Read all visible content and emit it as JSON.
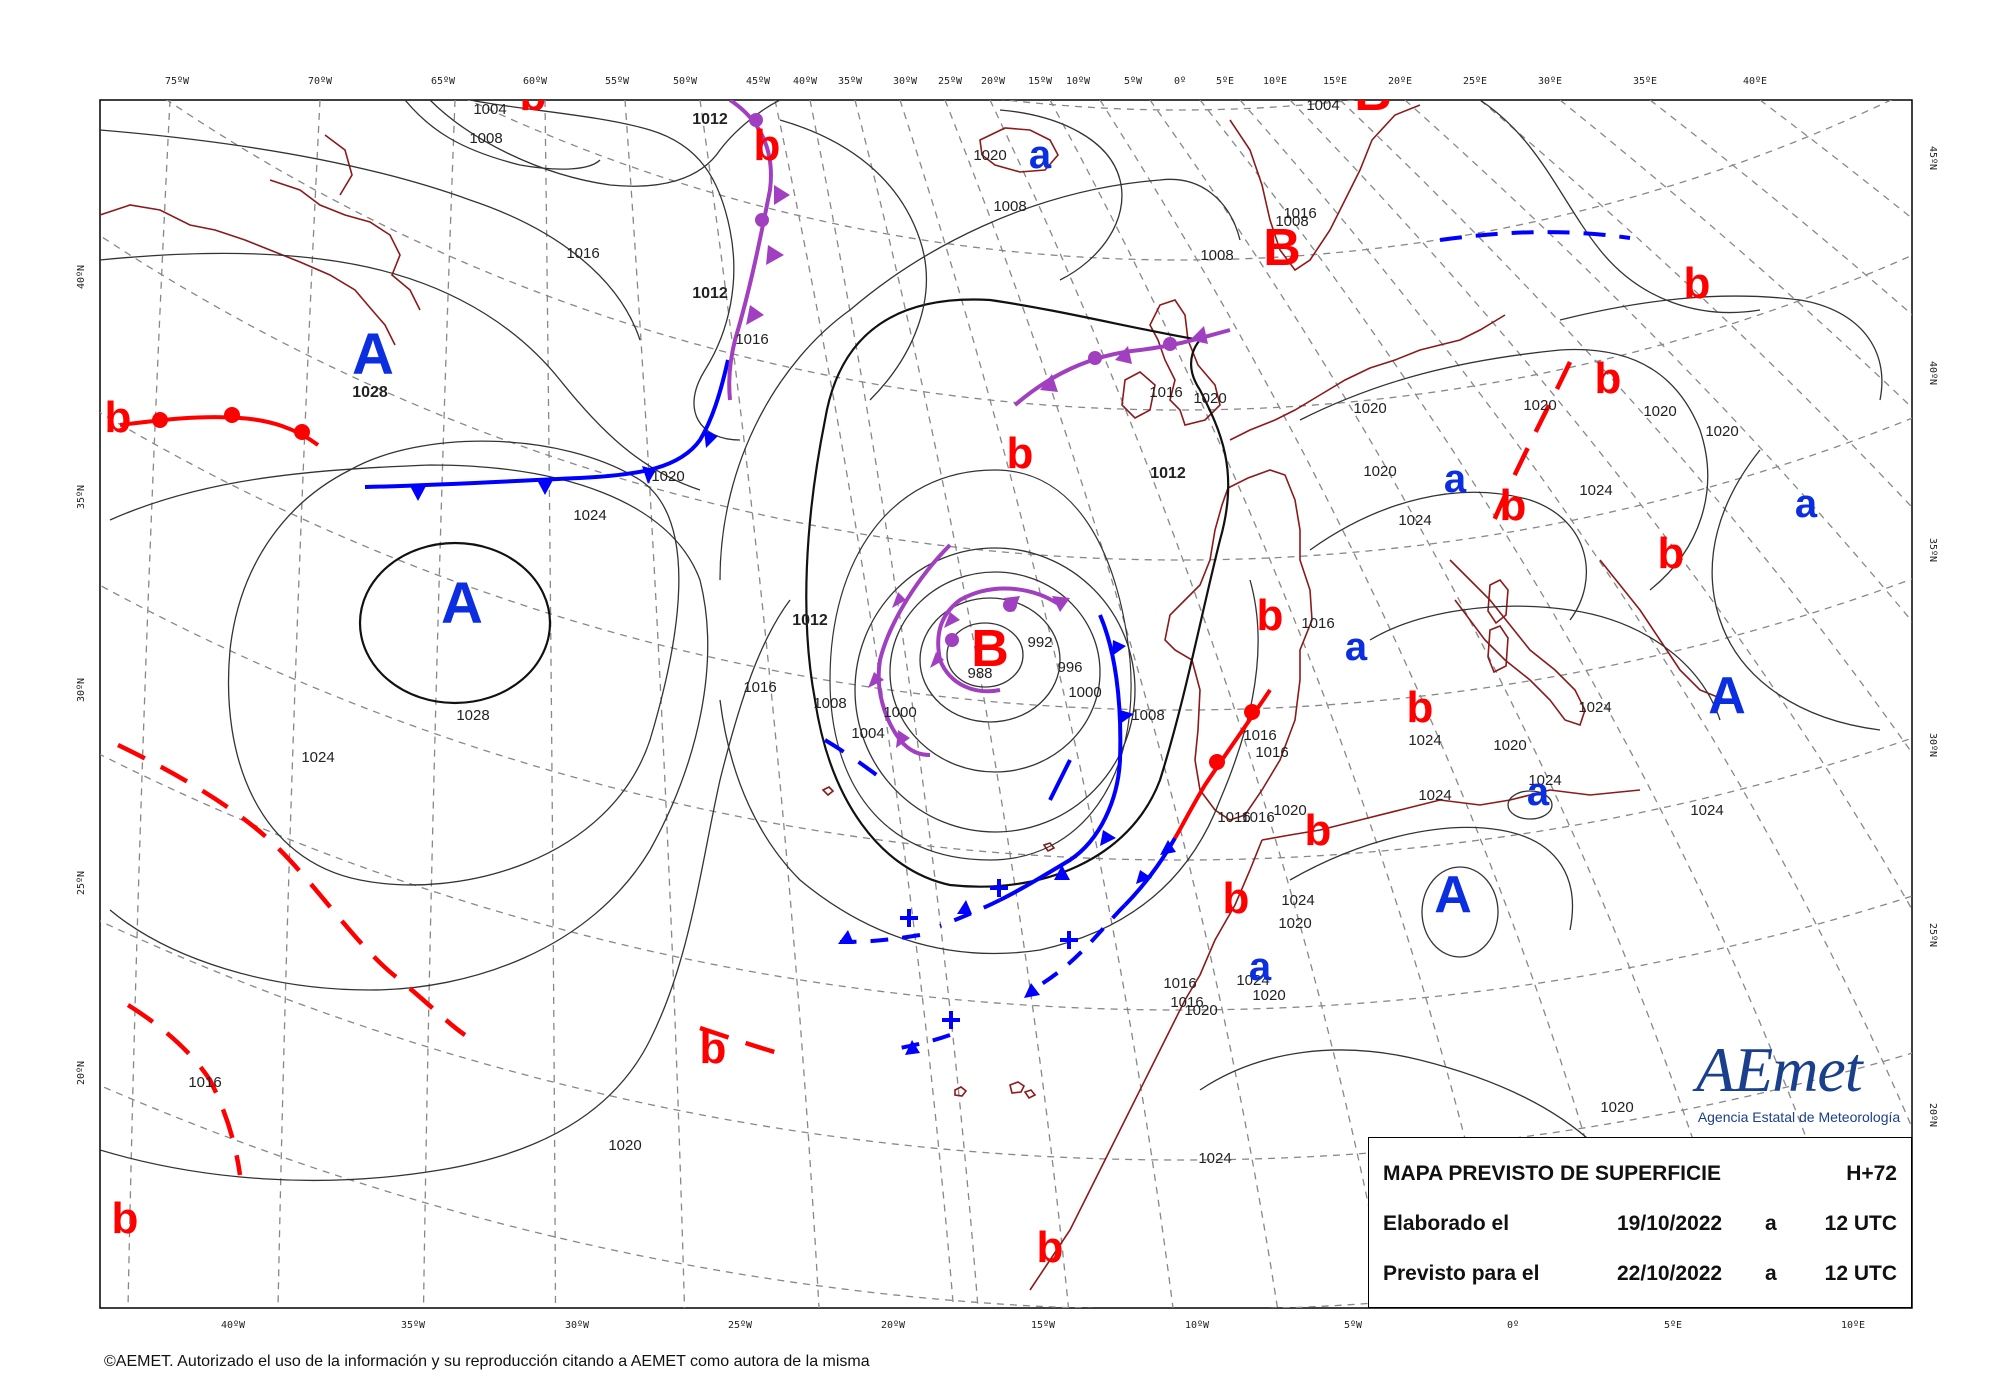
{
  "map": {
    "top_longitudes": [
      "75ºW",
      "70ºW",
      "65ºW",
      "60ºW",
      "55ºW",
      "50ºW",
      "45ºW",
      "40ºW",
      "35ºW",
      "30ºW",
      "25ºW",
      "20ºW",
      "15ºW",
      "10ºW",
      "5ºW",
      "0º",
      "5ºE",
      "10ºE",
      "15ºE",
      "20ºE",
      "25ºE",
      "30ºE",
      "35ºE",
      "40ºE"
    ],
    "bottom_longitudes": [
      "40ºW",
      "35ºW",
      "30ºW",
      "25ºW",
      "20ºW",
      "15ºW",
      "10ºW",
      "5ºW",
      "0º",
      "5ºE",
      "10ºE"
    ],
    "left_latitudes": [
      "40ºN",
      "35ºN",
      "30ºN",
      "25ºN",
      "20ºN"
    ],
    "right_latitudes": [
      "45ºN",
      "40ºN",
      "35ºN",
      "30ºN",
      "25ºN",
      "20ºN"
    ],
    "pressure_centers": [
      {
        "letter": "A",
        "kind": "high"
      },
      {
        "letter": "A",
        "kind": "high"
      },
      {
        "letter": "A",
        "kind": "high"
      },
      {
        "letter": "A",
        "kind": "high"
      },
      {
        "letter": "a",
        "kind": "high"
      },
      {
        "letter": "a",
        "kind": "high"
      },
      {
        "letter": "a",
        "kind": "high"
      },
      {
        "letter": "a",
        "kind": "high"
      },
      {
        "letter": "a",
        "kind": "high"
      },
      {
        "letter": "a",
        "kind": "high"
      },
      {
        "letter": "B",
        "kind": "low"
      },
      {
        "letter": "B",
        "kind": "low"
      },
      {
        "letter": "B",
        "kind": "low"
      },
      {
        "letter": "b",
        "kind": "low"
      },
      {
        "letter": "b",
        "kind": "low"
      },
      {
        "letter": "b",
        "kind": "low"
      },
      {
        "letter": "b",
        "kind": "low"
      },
      {
        "letter": "b",
        "kind": "low"
      },
      {
        "letter": "b",
        "kind": "low"
      },
      {
        "letter": "b",
        "kind": "low"
      },
      {
        "letter": "b",
        "kind": "low"
      },
      {
        "letter": "b",
        "kind": "low"
      },
      {
        "letter": "b",
        "kind": "low"
      },
      {
        "letter": "b",
        "kind": "low"
      },
      {
        "letter": "b",
        "kind": "low"
      },
      {
        "letter": "b",
        "kind": "low"
      },
      {
        "letter": "b",
        "kind": "low"
      },
      {
        "letter": "b",
        "kind": "low"
      }
    ],
    "isobar_labels": [
      "1004",
      "1008",
      "1012",
      "1012",
      "1016",
      "1020",
      "1024",
      "1028",
      "1028",
      "1020",
      "1024",
      "1016",
      "1012",
      "1008",
      "1004",
      "1000",
      "992",
      "996",
      "988",
      "1000",
      "1008",
      "1016",
      "1020",
      "1020",
      "1008",
      "1008",
      "1004",
      "1008",
      "1012",
      "1016",
      "1016",
      "1016",
      "1020",
      "1024",
      "1024",
      "1024",
      "1020",
      "1020",
      "1020",
      "1020",
      "1024",
      "1024",
      "1024",
      "1024",
      "1020",
      "1016",
      "1016",
      "1020",
      "1016",
      "1016",
      "1024",
      "1020",
      "1016",
      "1024",
      "1016",
      "1020",
      "1020",
      "1020",
      "1024",
      "1016"
    ],
    "legend_colors": {
      "warm_front": "#ff0000",
      "cold_front": "#0000ff",
      "occluded_front": "#a040c0",
      "high_letters": "#0a2ee0",
      "low_letters": "#ff0000",
      "coast": "#8b1a1a"
    }
  },
  "info_box": {
    "title": "MAPA PREVISTO DE SUPERFICIE",
    "horizon": "H+72",
    "made_label": "Elaborado el",
    "made_date": "19/10/2022",
    "made_at": "a",
    "made_time": "12 UTC",
    "valid_label": "Previsto para el",
    "valid_date": "22/10/2022",
    "valid_at": "a",
    "valid_time": "12 UTC"
  },
  "logo": {
    "text": "AEmet",
    "subtitle": "Agencia Estatal de Meteorología"
  },
  "copyright": "©AEMET. Autorizado el uso de la información y su reproducción citando a AEMET como autora de la misma"
}
